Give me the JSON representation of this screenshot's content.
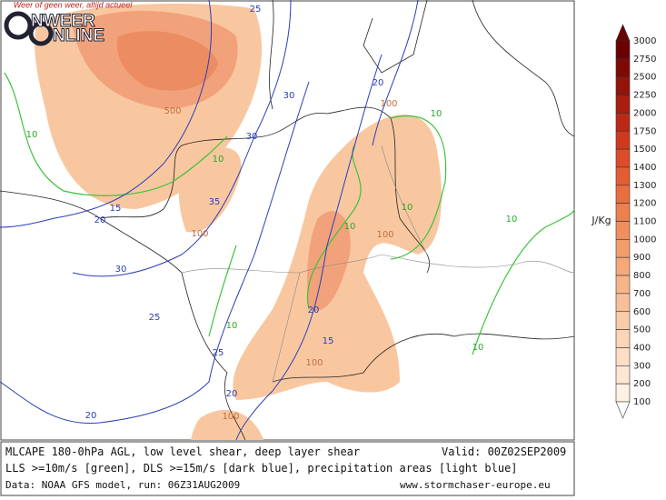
{
  "logo": {
    "tagline": "Weer of geen weer, altijd actueel",
    "line1": "NWEER",
    "line2": "NLINE"
  },
  "map": {
    "contour_labels": [
      "25",
      "500",
      "30",
      "30",
      "10",
      "15",
      "20",
      "35",
      "100",
      "10",
      "20",
      "100",
      "10",
      "10",
      "100",
      "10",
      "10",
      "30",
      "25",
      "20",
      "10",
      "15",
      "25",
      "100",
      "10",
      "20",
      "20",
      "100"
    ]
  },
  "colorbar": {
    "unit": "J/Kg",
    "levels": [
      "3000",
      "2750",
      "2500",
      "2250",
      "2000",
      "1750",
      "1500",
      "1400",
      "1300",
      "1200",
      "1100",
      "1000",
      "900",
      "800",
      "700",
      "600",
      "500",
      "400",
      "300",
      "200",
      "100"
    ],
    "colors": [
      "#6b0000",
      "#7f0a05",
      "#93140a",
      "#a81e10",
      "#bc2a16",
      "#cf3a1e",
      "#dd4c28",
      "#e55e33",
      "#ea6f40",
      "#ee7f4e",
      "#f18e5d",
      "#f39c6c",
      "#f5a97b",
      "#f7b58a",
      "#f8c099",
      "#facba8",
      "#fbd5b6",
      "#fcdfc5",
      "#fde7d3",
      "#fef0e2"
    ]
  },
  "caption": {
    "line1": "MLCAPE 180-0hPa AGL, low level shear, deep layer shear",
    "valid": "Valid: 00Z02SEP2009",
    "line2": "LLS >=10m/s [green], DLS >=15m/s [dark blue], precipitation areas [light blue]",
    "line3": "Data: NOAA GFS model, run: 06Z31AUG2009",
    "site": "www.stormchaser-europe.eu"
  }
}
